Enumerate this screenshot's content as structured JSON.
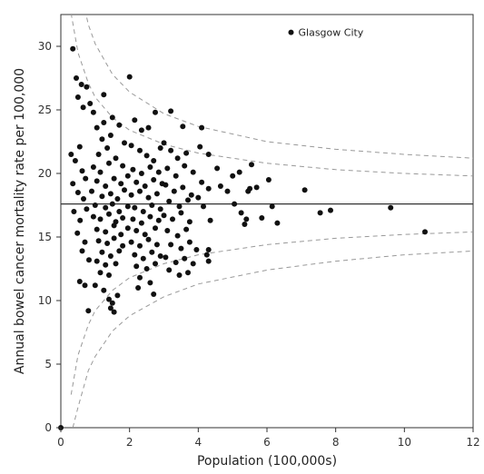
{
  "chart_data": {
    "type": "scatter",
    "title": "",
    "xlabel": "Population (100,000s)",
    "ylabel": "Annual bowel cancer mortality rate per 100,000",
    "xlim": [
      0,
      12
    ],
    "ylim": [
      0,
      32.5
    ],
    "xticks": [
      0,
      2,
      4,
      6,
      8,
      10,
      12
    ],
    "yticks": [
      0,
      5,
      10,
      15,
      20,
      25,
      30
    ],
    "grid": false,
    "reference_line": {
      "y": 17.6
    },
    "control_limits": {
      "style": "dashed",
      "curves": [
        {
          "x": [
            0.3,
            0.5,
            0.8,
            1.0,
            1.5,
            2.0,
            3.0,
            4.0,
            6.0,
            8.0,
            10.0,
            12.0
          ],
          "y": [
            40.5,
            35.3,
            31.7,
            30.2,
            27.8,
            26.4,
            24.7,
            23.7,
            22.5,
            21.9,
            21.5,
            21.2
          ]
        },
        {
          "x": [
            0.3,
            0.5,
            0.8,
            1.0,
            1.5,
            2.0,
            3.0,
            4.0,
            6.0,
            8.0,
            10.0,
            12.0
          ],
          "y": [
            32.6,
            29.5,
            27.1,
            26.0,
            24.4,
            23.4,
            22.3,
            21.6,
            20.8,
            20.3,
            20.0,
            19.8
          ]
        },
        {
          "x": [
            0.3,
            0.5,
            0.8,
            1.0,
            1.5,
            2.0,
            3.0,
            4.0,
            6.0,
            8.0,
            10.0,
            12.0
          ],
          "y": [
            2.6,
            5.7,
            8.1,
            9.2,
            10.8,
            11.8,
            12.9,
            13.6,
            14.4,
            14.9,
            15.2,
            15.4
          ]
        },
        {
          "x": [
            0.35,
            0.5,
            0.8,
            1.0,
            1.5,
            2.0,
            3.0,
            4.0,
            6.0,
            8.0,
            10.0,
            12.0
          ],
          "y": [
            0.0,
            1.6,
            4.5,
            5.6,
            7.6,
            8.8,
            10.3,
            11.3,
            12.4,
            13.1,
            13.6,
            13.9
          ]
        }
      ]
    },
    "annotation": {
      "text": "Glasgow City",
      "x": 6.7,
      "y": 31.1
    },
    "points": [
      [
        0.0,
        0.0
      ],
      [
        0.35,
        29.8
      ],
      [
        0.45,
        27.5
      ],
      [
        0.6,
        27.0
      ],
      [
        0.75,
        26.8
      ],
      [
        0.5,
        26.0
      ],
      [
        0.65,
        25.2
      ],
      [
        0.85,
        25.5
      ],
      [
        0.3,
        21.5
      ],
      [
        0.42,
        21.0
      ],
      [
        0.55,
        22.1
      ],
      [
        0.62,
        20.2
      ],
      [
        0.72,
        19.6
      ],
      [
        0.35,
        19.2
      ],
      [
        0.5,
        18.5
      ],
      [
        0.66,
        18.0
      ],
      [
        0.75,
        17.2
      ],
      [
        0.38,
        17.0
      ],
      [
        0.56,
        16.3
      ],
      [
        0.48,
        15.3
      ],
      [
        0.7,
        14.6
      ],
      [
        0.62,
        13.9
      ],
      [
        0.82,
        13.2
      ],
      [
        0.55,
        11.5
      ],
      [
        0.7,
        11.2
      ],
      [
        0.8,
        9.2
      ],
      [
        1.25,
        26.2
      ],
      [
        0.95,
        24.8
      ],
      [
        1.05,
        23.6
      ],
      [
        1.2,
        22.7
      ],
      [
        1.45,
        23.0
      ],
      [
        1.1,
        21.5
      ],
      [
        1.35,
        22.0
      ],
      [
        0.95,
        20.5
      ],
      [
        1.15,
        20.1
      ],
      [
        1.4,
        20.8
      ],
      [
        1.6,
        21.2
      ],
      [
        1.8,
        20.6
      ],
      [
        1.05,
        19.4
      ],
      [
        1.3,
        19.0
      ],
      [
        1.55,
        19.6
      ],
      [
        1.75,
        19.2
      ],
      [
        1.95,
        19.8
      ],
      [
        0.9,
        18.6
      ],
      [
        1.2,
        18.2
      ],
      [
        1.45,
        18.4
      ],
      [
        1.65,
        18.0
      ],
      [
        1.85,
        18.7
      ],
      [
        1.0,
        17.5
      ],
      [
        1.3,
        17.3
      ],
      [
        1.5,
        17.6
      ],
      [
        1.7,
        17.0
      ],
      [
        1.95,
        17.4
      ],
      [
        0.95,
        16.6
      ],
      [
        1.15,
        16.4
      ],
      [
        1.4,
        16.8
      ],
      [
        1.6,
        16.2
      ],
      [
        1.8,
        16.5
      ],
      [
        1.05,
        15.6
      ],
      [
        1.3,
        15.4
      ],
      [
        1.55,
        15.9
      ],
      [
        1.75,
        15.2
      ],
      [
        1.95,
        15.7
      ],
      [
        1.1,
        14.7
      ],
      [
        1.35,
        14.5
      ],
      [
        1.55,
        14.9
      ],
      [
        1.8,
        14.3
      ],
      [
        1.2,
        13.8
      ],
      [
        1.45,
        13.5
      ],
      [
        1.7,
        13.9
      ],
      [
        1.05,
        13.1
      ],
      [
        1.3,
        12.8
      ],
      [
        1.6,
        12.9
      ],
      [
        1.15,
        12.2
      ],
      [
        1.4,
        12.0
      ],
      [
        1.0,
        11.2
      ],
      [
        1.25,
        10.8
      ],
      [
        1.4,
        10.1
      ],
      [
        1.5,
        9.8
      ],
      [
        1.45,
        9.4
      ],
      [
        1.55,
        9.1
      ],
      [
        1.65,
        10.4
      ],
      [
        1.25,
        24.0
      ],
      [
        1.5,
        24.4
      ],
      [
        1.7,
        23.8
      ],
      [
        1.85,
        22.4
      ],
      [
        2.0,
        27.6
      ],
      [
        2.15,
        24.2
      ],
      [
        2.35,
        23.4
      ],
      [
        2.55,
        23.6
      ],
      [
        2.75,
        24.8
      ],
      [
        2.05,
        22.2
      ],
      [
        2.3,
        21.8
      ],
      [
        2.5,
        21.4
      ],
      [
        2.7,
        21.0
      ],
      [
        2.9,
        22.0
      ],
      [
        2.1,
        20.3
      ],
      [
        2.35,
        20.0
      ],
      [
        2.6,
        20.5
      ],
      [
        2.85,
        20.1
      ],
      [
        2.2,
        19.3
      ],
      [
        2.45,
        19.0
      ],
      [
        2.7,
        19.5
      ],
      [
        2.95,
        19.2
      ],
      [
        2.05,
        18.3
      ],
      [
        2.3,
        18.6
      ],
      [
        2.55,
        18.1
      ],
      [
        2.8,
        18.4
      ],
      [
        2.15,
        17.3
      ],
      [
        2.4,
        17.0
      ],
      [
        2.65,
        17.5
      ],
      [
        2.9,
        17.2
      ],
      [
        2.1,
        16.4
      ],
      [
        2.35,
        16.1
      ],
      [
        2.6,
        16.6
      ],
      [
        2.85,
        16.3
      ],
      [
        2.2,
        15.5
      ],
      [
        2.45,
        15.2
      ],
      [
        2.75,
        15.7
      ],
      [
        2.05,
        14.6
      ],
      [
        2.3,
        14.3
      ],
      [
        2.55,
        14.8
      ],
      [
        2.8,
        14.4
      ],
      [
        2.15,
        13.6
      ],
      [
        2.4,
        13.3
      ],
      [
        2.65,
        13.8
      ],
      [
        2.9,
        13.5
      ],
      [
        2.2,
        12.7
      ],
      [
        2.5,
        12.5
      ],
      [
        2.75,
        12.9
      ],
      [
        2.3,
        11.8
      ],
      [
        2.6,
        11.4
      ],
      [
        2.25,
        11.0
      ],
      [
        2.7,
        10.5
      ],
      [
        3.0,
        22.4
      ],
      [
        3.2,
        21.8
      ],
      [
        3.4,
        21.2
      ],
      [
        3.65,
        21.6
      ],
      [
        3.1,
        20.4
      ],
      [
        3.35,
        19.8
      ],
      [
        3.6,
        20.6
      ],
      [
        3.85,
        20.1
      ],
      [
        3.05,
        19.1
      ],
      [
        3.3,
        18.6
      ],
      [
        3.55,
        18.9
      ],
      [
        3.8,
        18.3
      ],
      [
        3.15,
        17.8
      ],
      [
        3.45,
        17.4
      ],
      [
        3.7,
        17.9
      ],
      [
        3.0,
        16.7
      ],
      [
        3.25,
        16.4
      ],
      [
        3.5,
        16.9
      ],
      [
        3.75,
        16.2
      ],
      [
        3.1,
        15.5
      ],
      [
        3.4,
        15.1
      ],
      [
        3.65,
        15.6
      ],
      [
        3.2,
        14.4
      ],
      [
        3.5,
        14.1
      ],
      [
        3.75,
        14.6
      ],
      [
        3.05,
        13.4
      ],
      [
        3.35,
        13.0
      ],
      [
        3.6,
        13.3
      ],
      [
        3.85,
        12.9
      ],
      [
        3.15,
        12.4
      ],
      [
        3.45,
        12.0
      ],
      [
        3.7,
        12.2
      ],
      [
        3.95,
        14.0
      ],
      [
        3.2,
        24.9
      ],
      [
        3.55,
        23.7
      ],
      [
        4.1,
        23.6
      ],
      [
        4.05,
        22.1
      ],
      [
        4.3,
        21.5
      ],
      [
        4.1,
        19.3
      ],
      [
        4.3,
        18.8
      ],
      [
        4.15,
        17.4
      ],
      [
        4.35,
        16.3
      ],
      [
        4.3,
        14.0
      ],
      [
        4.25,
        13.6
      ],
      [
        4.3,
        13.1
      ],
      [
        4.0,
        18.1
      ],
      [
        4.55,
        20.4
      ],
      [
        4.65,
        19.0
      ],
      [
        4.85,
        18.6
      ],
      [
        5.0,
        19.8
      ],
      [
        5.2,
        20.1
      ],
      [
        5.05,
        17.6
      ],
      [
        5.25,
        16.9
      ],
      [
        5.5,
        18.8
      ],
      [
        5.55,
        20.7
      ],
      [
        5.45,
        18.6
      ],
      [
        5.4,
        16.4
      ],
      [
        5.35,
        16.0
      ],
      [
        5.7,
        18.9
      ],
      [
        5.85,
        16.5
      ],
      [
        6.05,
        19.5
      ],
      [
        6.15,
        17.4
      ],
      [
        6.3,
        16.1
      ],
      [
        7.1,
        18.7
      ],
      [
        7.55,
        16.9
      ],
      [
        7.85,
        17.1
      ],
      [
        9.6,
        17.3
      ],
      [
        10.6,
        15.4
      ]
    ]
  }
}
